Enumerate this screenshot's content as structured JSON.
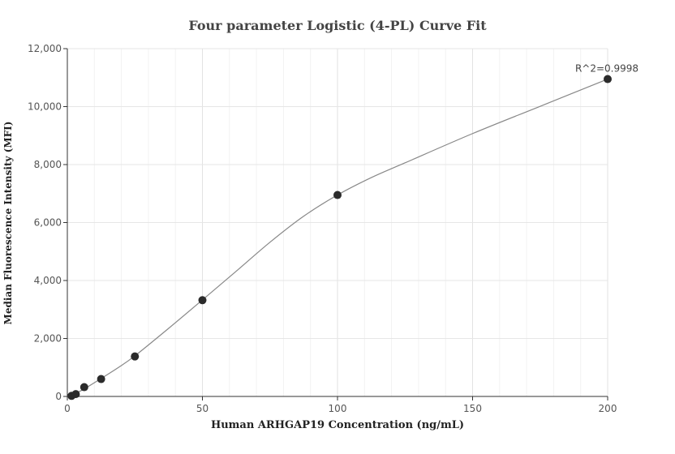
{
  "chart_data": {
    "type": "scatter",
    "title": "Four parameter Logistic (4-PL) Curve Fit",
    "xlabel": "Human ARHGAP19 Concentration (ng/mL)",
    "ylabel": "Median Fluorescence Intensity (MFI)",
    "xlim": [
      0,
      200
    ],
    "ylim": [
      0,
      12000
    ],
    "x_ticks": [
      0,
      50,
      100,
      150,
      200
    ],
    "x_tick_labels": [
      "0",
      "50",
      "100",
      "150",
      "200"
    ],
    "y_ticks": [
      0,
      2000,
      4000,
      6000,
      8000,
      10000,
      12000
    ],
    "y_tick_labels": [
      "0",
      "2,000",
      "4,000",
      "6,000",
      "8,000",
      "10,000",
      "12,000"
    ],
    "grid": true,
    "points": [
      {
        "x": 1.5625,
        "y": 20
      },
      {
        "x": 3.125,
        "y": 80
      },
      {
        "x": 6.25,
        "y": 320
      },
      {
        "x": 12.5,
        "y": 600
      },
      {
        "x": 25,
        "y": 1380
      },
      {
        "x": 50,
        "y": 3320
      },
      {
        "x": 100,
        "y": 6950
      },
      {
        "x": 200,
        "y": 10950
      }
    ],
    "fit_curve": {
      "model": "4-PL",
      "x": [
        0,
        3.125,
        6.25,
        12.5,
        18.75,
        25,
        37.5,
        50,
        62.5,
        75,
        87.5,
        100,
        112.5,
        125,
        150,
        175,
        200
      ],
      "y": [
        0,
        110,
        260,
        620,
        990,
        1400,
        2350,
        3330,
        4320,
        5320,
        6220,
        6950,
        7550,
        8060,
        9070,
        10010,
        10950
      ]
    },
    "annotation": "R^2=0.9998",
    "colors": {
      "points": "#2b2b2b",
      "curve": "#888888",
      "grid": "#e6e6e6",
      "axis": "#333333"
    }
  }
}
